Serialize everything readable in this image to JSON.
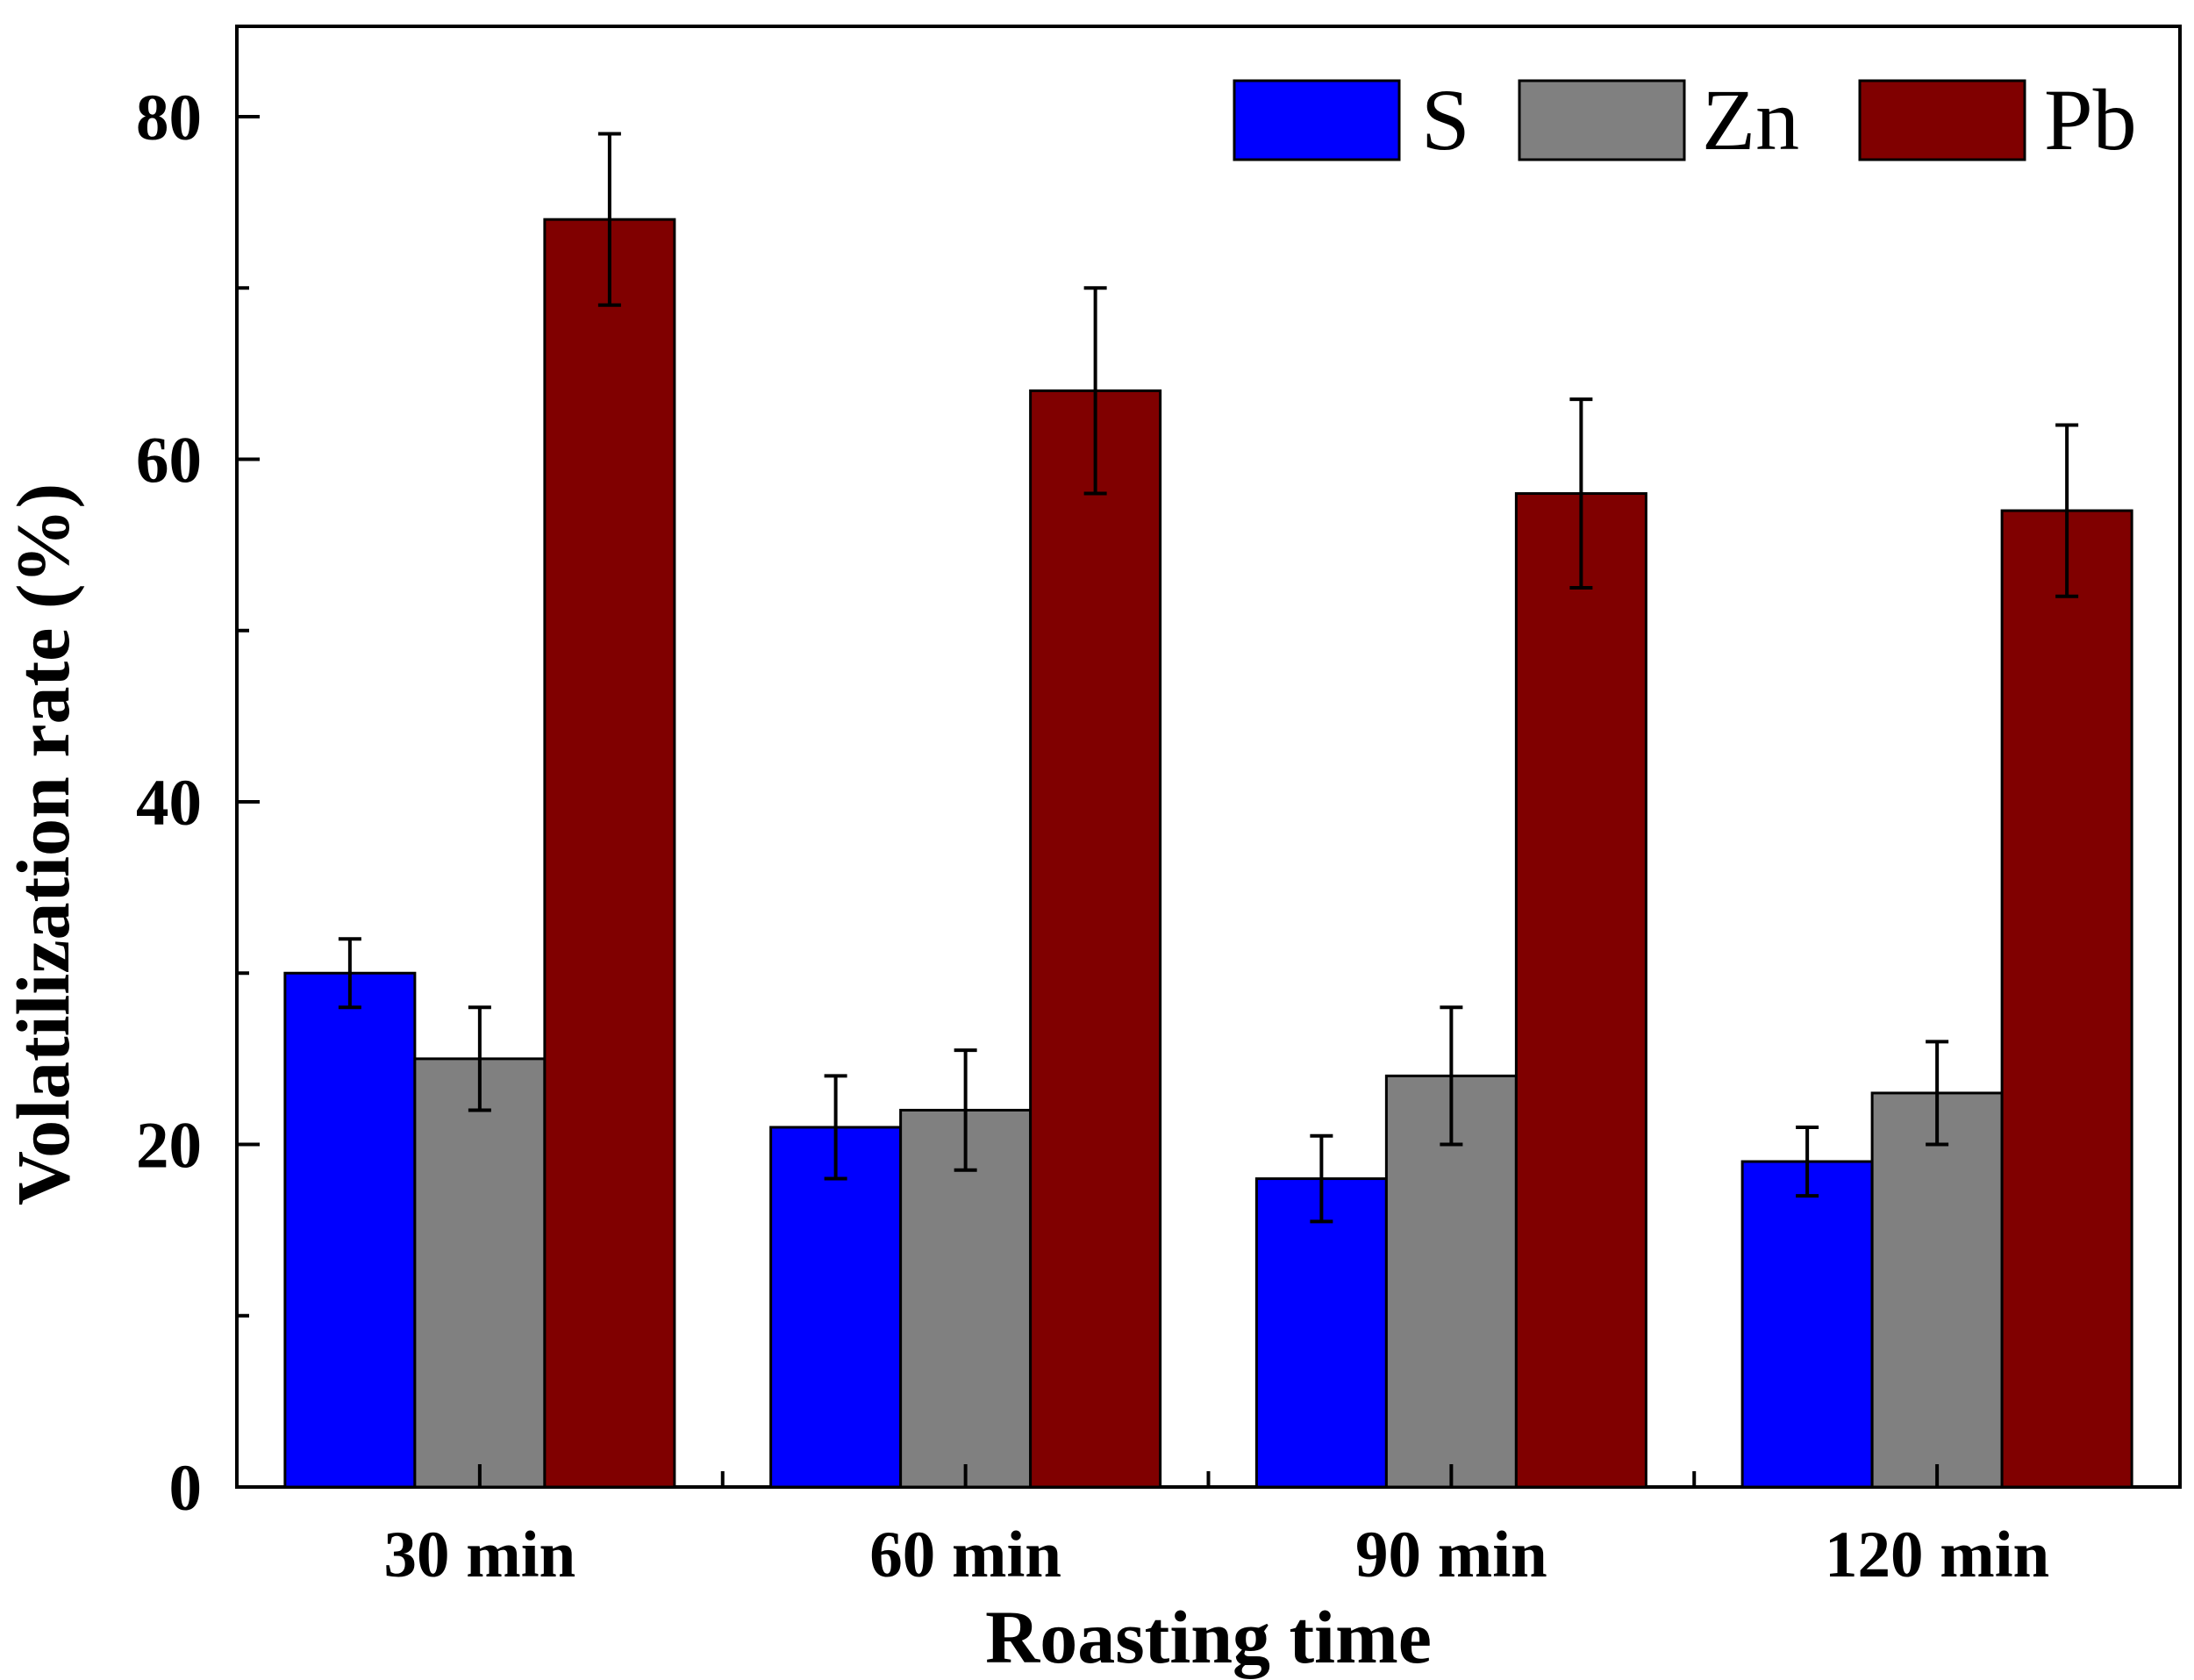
{
  "chart_data": {
    "type": "bar",
    "title": "",
    "xlabel": "Roasting time",
    "ylabel": "Volatilization rate (%)",
    "categories": [
      "30 min",
      "60 min",
      "90 min",
      "120 min"
    ],
    "ylim": [
      0,
      85
    ],
    "yticks": [
      0,
      20,
      40,
      60,
      80
    ],
    "yticks_minor": [
      10,
      30,
      50,
      70
    ],
    "grid": false,
    "legend_position": "top-right",
    "series": [
      {
        "name": "S",
        "color": "#0000ff",
        "values": [
          30,
          21,
          18,
          19
        ],
        "errors": [
          2,
          3,
          2.5,
          2
        ]
      },
      {
        "name": "Zn",
        "color": "#808080",
        "values": [
          25,
          22,
          24,
          23
        ],
        "errors": [
          3,
          3.5,
          4,
          3
        ]
      },
      {
        "name": "Pb",
        "color": "#800000",
        "values": [
          74,
          64,
          58,
          57
        ],
        "errors": [
          5,
          6,
          5.5,
          5
        ]
      }
    ]
  }
}
